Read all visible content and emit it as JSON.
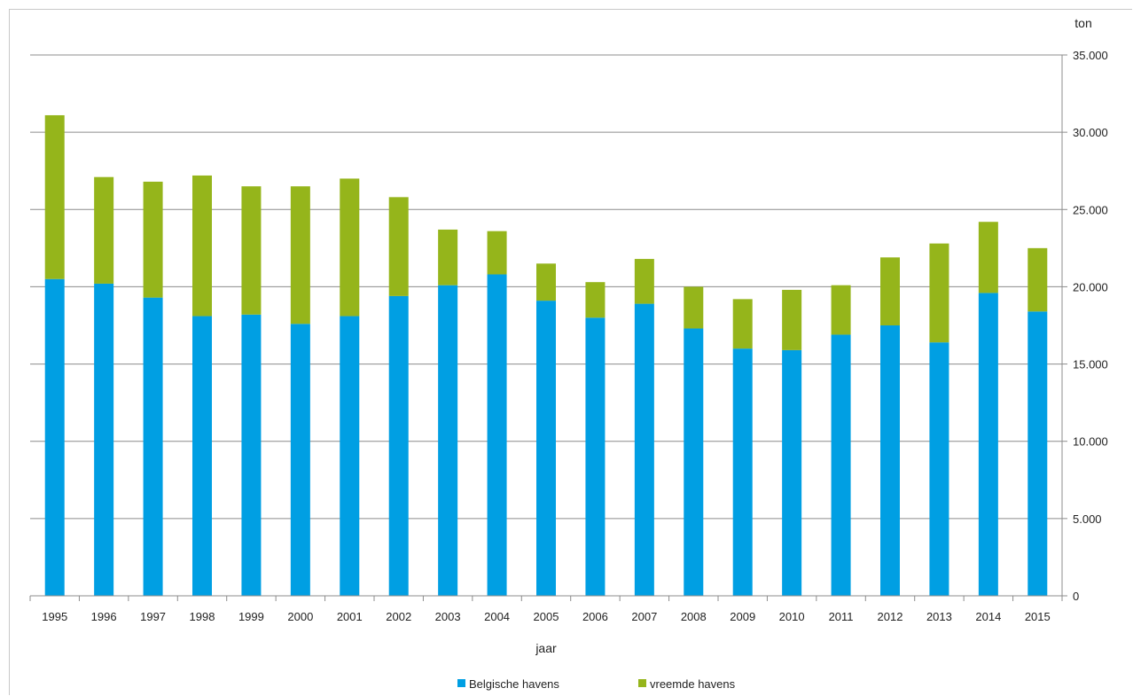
{
  "chart_data": {
    "type": "bar",
    "stacked": true,
    "xlabel": "jaar",
    "ylabel": "ton",
    "ylim": [
      0,
      35000
    ],
    "yticks": [
      0,
      5000,
      10000,
      15000,
      20000,
      25000,
      30000,
      35000
    ],
    "ytick_labels": [
      "0",
      "5.000",
      "10.000",
      "15.000",
      "20.000",
      "25.000",
      "30.000",
      "35.000"
    ],
    "y_axis_side": "right",
    "grid": true,
    "legend_position": "bottom",
    "categories": [
      "1995",
      "1996",
      "1997",
      "1998",
      "1999",
      "2000",
      "2001",
      "2002",
      "2003",
      "2004",
      "2005",
      "2006",
      "2007",
      "2008",
      "2009",
      "2010",
      "2011",
      "2012",
      "2013",
      "2014",
      "2015"
    ],
    "series": [
      {
        "name": "Belgische havens",
        "color": "#009fe3",
        "values": [
          20500,
          20200,
          19300,
          18100,
          18200,
          17600,
          18100,
          19400,
          20100,
          20800,
          19100,
          18000,
          18900,
          17300,
          16000,
          15900,
          16900,
          17500,
          16400,
          19600,
          18400
        ]
      },
      {
        "name": "vreemde havens",
        "color": "#95b51b",
        "values": [
          10600,
          6900,
          7500,
          9100,
          8300,
          8900,
          8900,
          6400,
          3600,
          2800,
          2400,
          2300,
          2900,
          2700,
          3200,
          3900,
          3200,
          4400,
          6400,
          4600,
          4100
        ]
      }
    ]
  }
}
